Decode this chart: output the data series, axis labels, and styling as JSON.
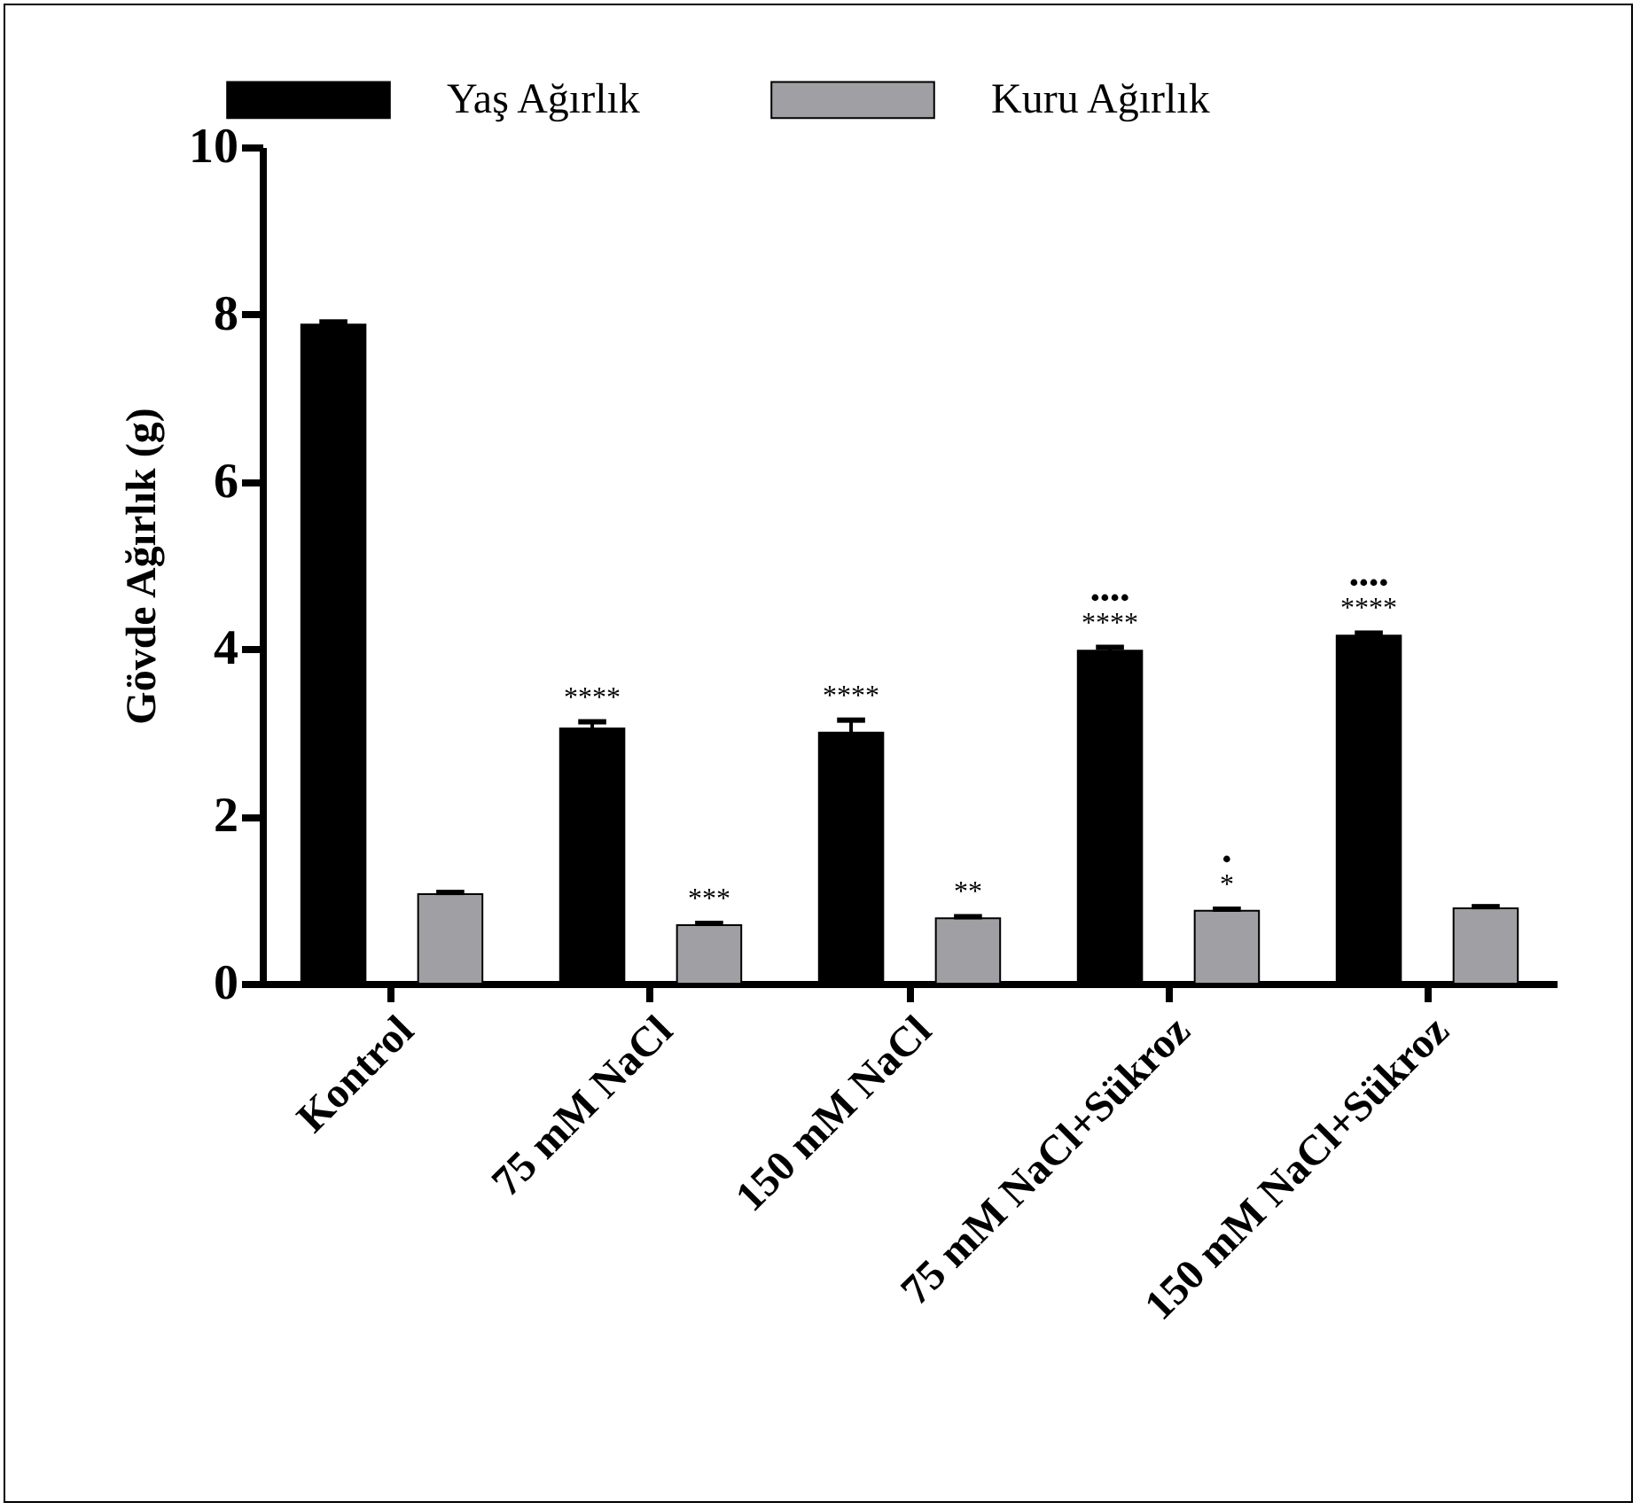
{
  "chart_data": {
    "type": "bar",
    "ylabel": "Gövde Ağırlık (g)",
    "categories": [
      "Kontrol",
      "75 mM NaCl",
      "150 mM NaCl",
      "75 mM NaCl+Sükroz",
      "150 mM NaCl+Sükroz"
    ],
    "series": [
      {
        "name": "Yaş Ağırlık",
        "color": "#000000",
        "values": [
          7.88,
          3.05,
          3.0,
          3.98,
          4.16
        ],
        "errors": [
          0.03,
          0.08,
          0.15,
          0.04,
          0.03
        ],
        "value_labels": [
          null,
          "****",
          "****",
          "••••\n****",
          "••••\n****"
        ]
      },
      {
        "name": "Kuru Ağırlık",
        "color": "#a0a0a4",
        "values": [
          1.07,
          0.7,
          0.78,
          0.87,
          0.9
        ],
        "errors": [
          0.02,
          0.02,
          0.02,
          0.02,
          0.02
        ],
        "value_labels": [
          null,
          "***",
          "**",
          "•\n*",
          null
        ]
      }
    ],
    "ylim": [
      0,
      10
    ],
    "yticks": [
      0,
      2,
      4,
      6,
      8,
      10
    ],
    "grid": false,
    "legend": "top"
  }
}
